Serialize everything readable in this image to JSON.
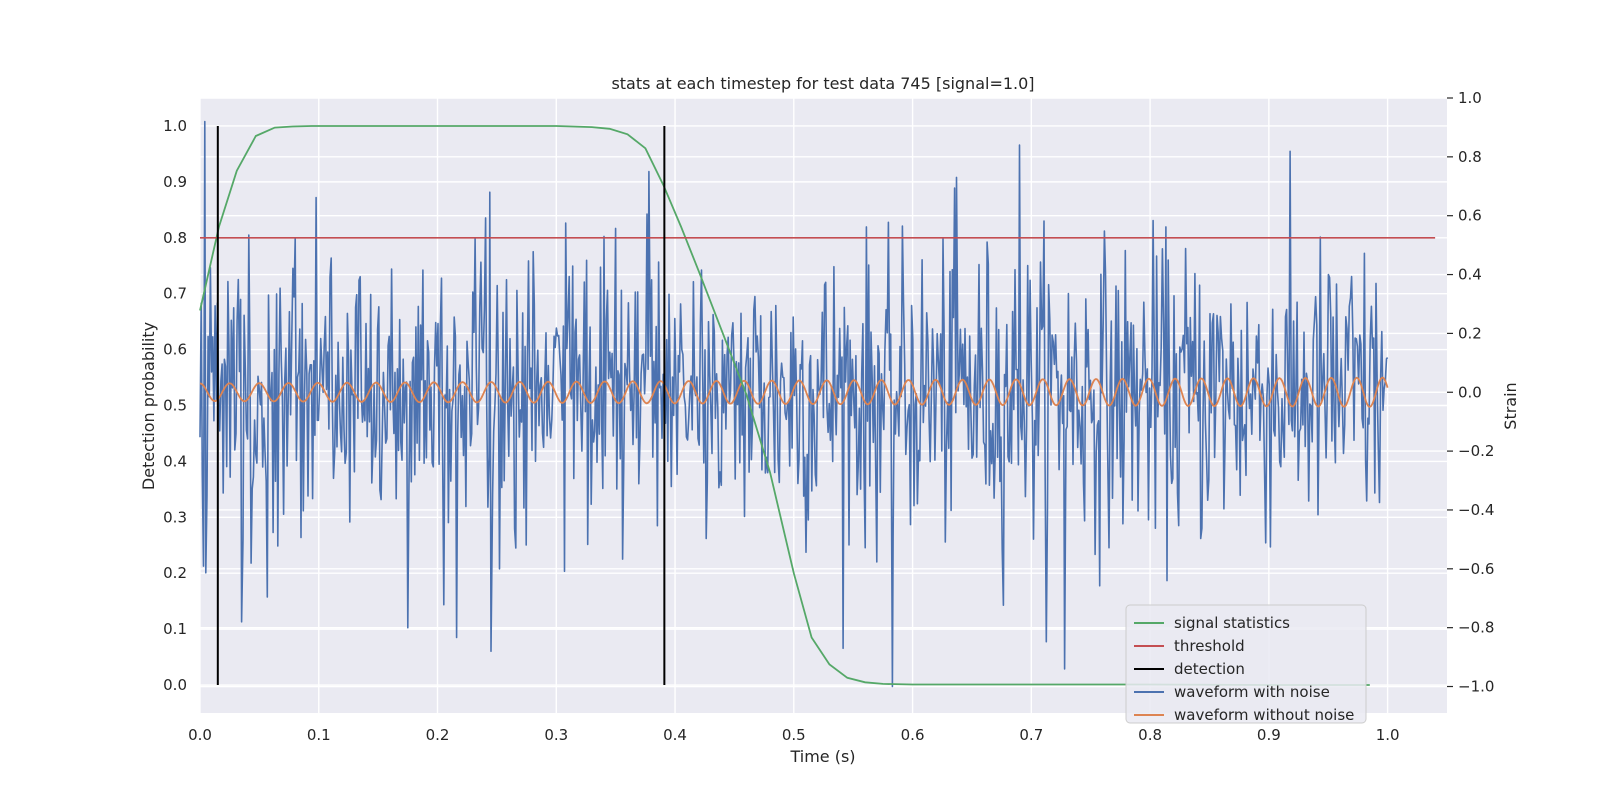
{
  "chart_data": {
    "type": "line",
    "title": "stats at each timestep for test data 745 [signal=1.0]",
    "xlabel": "Time (s)",
    "ylabel": "Detection probability",
    "ylabel_right": "Strain",
    "xlim": [
      0.0,
      1.05
    ],
    "ylim": [
      -0.05,
      1.05
    ],
    "ylim_right": [
      -1.09,
      1.0
    ],
    "x_ticks": [
      0.0,
      0.1,
      0.2,
      0.3,
      0.4,
      0.5,
      0.6,
      0.7,
      0.8,
      0.9,
      1.0
    ],
    "x_tick_labels": [
      "0.0",
      "0.1",
      "0.2",
      "0.3",
      "0.4",
      "0.5",
      "0.6",
      "0.7",
      "0.8",
      "0.9",
      "1.0"
    ],
    "y_ticks": [
      0.0,
      0.1,
      0.2,
      0.3,
      0.4,
      0.5,
      0.6,
      0.7,
      0.8,
      0.9,
      1.0
    ],
    "y_tick_labels": [
      "0.0",
      "0.1",
      "0.2",
      "0.3",
      "0.4",
      "0.5",
      "0.6",
      "0.7",
      "0.8",
      "0.9",
      "1.0"
    ],
    "y_right_ticks": [
      -1.0,
      -0.8,
      -0.6,
      -0.4,
      -0.2,
      0.0,
      0.2,
      0.4,
      0.6,
      0.8,
      1.0
    ],
    "y_right_tick_labels": [
      "−1.0",
      "−0.8",
      "−0.6",
      "−0.4",
      "−0.2",
      "0.0",
      "0.2",
      "0.4",
      "0.6",
      "0.8",
      "1.0"
    ],
    "grid": true,
    "legend_position": "lower-right",
    "series": [
      {
        "name": "signal statistics",
        "axis": "left",
        "color": "#55a868",
        "x": [
          0.0,
          0.016,
          0.031,
          0.047,
          0.063,
          0.078,
          0.094,
          0.125,
          0.2,
          0.3,
          0.33,
          0.345,
          0.36,
          0.375,
          0.39,
          0.405,
          0.42,
          0.44,
          0.46,
          0.48,
          0.5,
          0.515,
          0.53,
          0.545,
          0.56,
          0.575,
          0.6,
          0.7,
          0.8,
          0.9,
          0.985
        ],
        "y": [
          0.67,
          0.82,
          0.92,
          0.982,
          0.997,
          0.999,
          1.0,
          1.0,
          1.0,
          1.0,
          0.998,
          0.995,
          0.985,
          0.96,
          0.895,
          0.82,
          0.74,
          0.63,
          0.52,
          0.38,
          0.2,
          0.085,
          0.037,
          0.013,
          0.005,
          0.002,
          0.001,
          0.001,
          0.001,
          0.0,
          0.0
        ]
      },
      {
        "name": "threshold",
        "axis": "left",
        "color": "#c44e52",
        "x": [
          0.0,
          1.04
        ],
        "y": [
          0.8,
          0.8
        ]
      },
      {
        "name": "detection",
        "axis": "left",
        "color": "#000000",
        "detections_x": [
          0.015,
          0.391
        ],
        "y_range": [
          0.0,
          1.0
        ]
      },
      {
        "name": "waveform with noise",
        "axis": "right",
        "color": "#4c72b0",
        "sampling": "approximately 1024 noisy samples between 0.0 and 1.0 s, standard deviation about 0.25 strain",
        "peaks": [
          {
            "x": 0.004,
            "y": 0.92
          },
          {
            "x": 0.244,
            "y": 0.68
          },
          {
            "x": 0.378,
            "y": 0.75
          },
          {
            "x": 0.69,
            "y": 0.84
          },
          {
            "x": 0.637,
            "y": 0.73
          },
          {
            "x": 0.245,
            "y": -0.88
          },
          {
            "x": 0.583,
            "y": -1.0
          },
          {
            "x": 0.728,
            "y": -0.94
          },
          {
            "x": 0.035,
            "y": -0.78
          },
          {
            "x": 0.175,
            "y": -0.8
          }
        ]
      },
      {
        "name": "waveform without noise",
        "axis": "right",
        "color": "#dd8452",
        "description": "sinusoid near 0.0 strain, ~40 cycles over 1 s, amplitude growing from about 0.03 to 0.05",
        "amplitude_start": 0.03,
        "amplitude_end": 0.05,
        "cycles": 40
      }
    ]
  }
}
